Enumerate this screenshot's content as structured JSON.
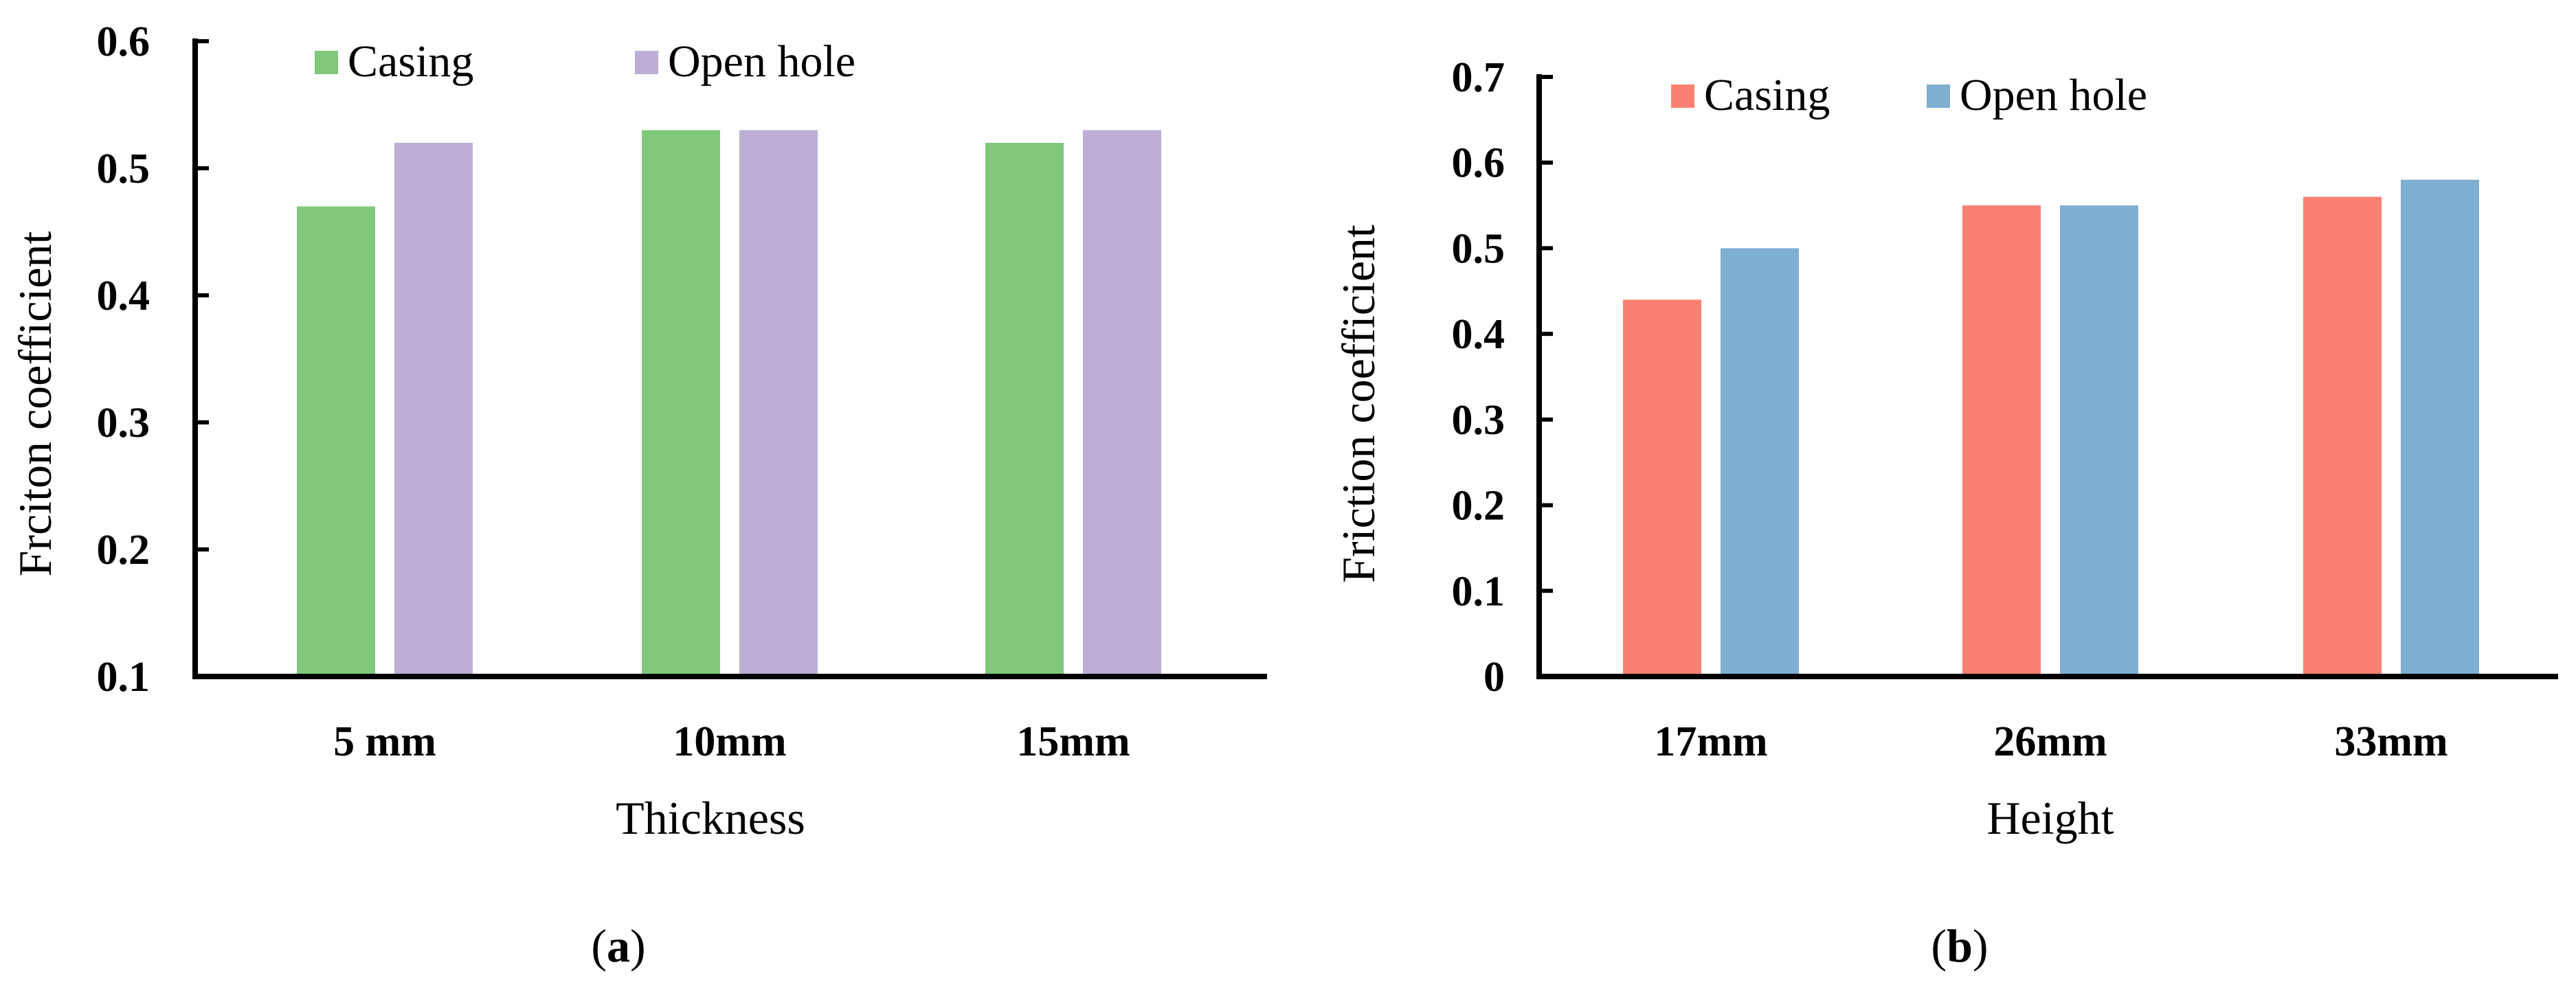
{
  "chart_data": [
    {
      "type": "bar",
      "panel_label": {
        "open": "(",
        "letter": "a",
        "close": ")"
      },
      "categories": [
        "5 mm",
        "10mm",
        "15mm"
      ],
      "series": [
        {
          "name": "Casing",
          "values": [
            0.47,
            0.53,
            0.52
          ],
          "color": "#80c87c"
        },
        {
          "name": "Open hole",
          "values": [
            0.52,
            0.53,
            0.53
          ],
          "color": "#bdaed5"
        }
      ],
      "xlabel": "Thickness",
      "ylabel": "Frciton coefficient",
      "ylim": [
        0.1,
        0.6
      ],
      "yticks": [
        "0.1",
        "0.2",
        "0.3",
        "0.4",
        "0.5",
        "0.6"
      ],
      "legend": "top",
      "grid": false
    },
    {
      "type": "bar",
      "panel_label": {
        "open": "(",
        "letter": "b",
        "close": ")"
      },
      "categories": [
        "17mm",
        "26mm",
        "33mm"
      ],
      "series": [
        {
          "name": "Casing",
          "values": [
            0.44,
            0.55,
            0.56
          ],
          "color": "#fa8072"
        },
        {
          "name": "Open hole",
          "values": [
            0.5,
            0.55,
            0.58
          ],
          "color": "#7fafd1"
        }
      ],
      "xlabel": "Height",
      "ylabel": "Friction coefficient",
      "ylim": [
        0,
        0.7
      ],
      "yticks": [
        "0",
        "0.1",
        "0.2",
        "0.3",
        "0.4",
        "0.5",
        "0.6",
        "0.7"
      ],
      "legend": "top",
      "grid": false
    }
  ]
}
